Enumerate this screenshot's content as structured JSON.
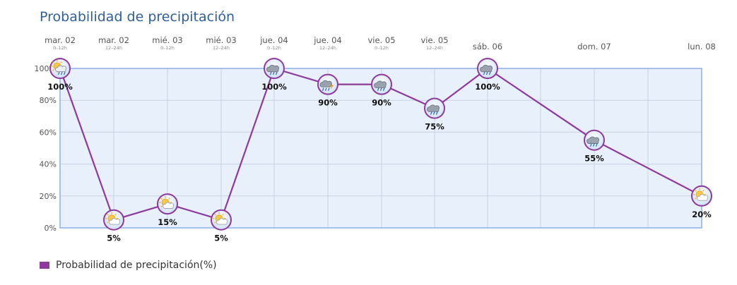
{
  "title": "Probabilidad de precipitación",
  "legend": {
    "label": "Probabilidad de precipitación(%)"
  },
  "colors": {
    "line": "#8e3a9d",
    "plot_bg": "#e8f0fc",
    "plot_border": "#8ab0e8",
    "grid": "#c7d2e2",
    "title": "#2e5f9a"
  },
  "chart_data": {
    "type": "line",
    "title": "Probabilidad de precipitación",
    "xlabel": "",
    "ylabel": "",
    "ylim": [
      0,
      100
    ],
    "yticks": [
      "0%",
      "20%",
      "40%",
      "60%",
      "80%",
      "100%"
    ],
    "grid": true,
    "legend_position": "bottom-left",
    "series": [
      {
        "name": "Probabilidad de precipitación(%)",
        "points": [
          {
            "day": "mar. 02",
            "range": "0–12h",
            "value": 100,
            "label": "100%",
            "icon": "sun-cloud-rain-icon"
          },
          {
            "day": "mar. 02",
            "range": "12–24h",
            "value": 5,
            "label": "5%",
            "icon": "sun-cloud-icon"
          },
          {
            "day": "mié. 03",
            "range": "0–12h",
            "value": 15,
            "label": "15%",
            "icon": "sun-cloud-icon"
          },
          {
            "day": "mié. 03",
            "range": "12–24h",
            "value": 5,
            "label": "5%",
            "icon": "sun-cloud-icon"
          },
          {
            "day": "jue. 04",
            "range": "0–12h",
            "value": 100,
            "label": "100%",
            "icon": "rain-cloud-icon"
          },
          {
            "day": "jue. 04",
            "range": "12–24h",
            "value": 90,
            "label": "90%",
            "icon": "storm-cloud-icon"
          },
          {
            "day": "vie. 05",
            "range": "0–12h",
            "value": 90,
            "label": "90%",
            "icon": "rain-cloud-icon"
          },
          {
            "day": "vie. 05",
            "range": "12–24h",
            "value": 75,
            "label": "75%",
            "icon": "rain-cloud-icon"
          },
          {
            "day": "sáb. 06",
            "range": "",
            "value": 100,
            "label": "100%",
            "icon": "rain-cloud-icon"
          },
          {
            "day": "dom. 07",
            "range": "",
            "value": 55,
            "label": "55%",
            "icon": "rain-cloud-icon"
          },
          {
            "day": "lun. 08",
            "range": "",
            "value": 20,
            "label": "20%",
            "icon": "sun-cloud-icon"
          }
        ]
      }
    ]
  }
}
